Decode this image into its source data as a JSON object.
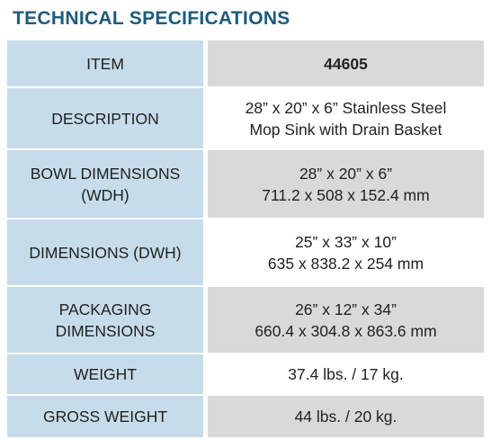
{
  "title": "TECHNICAL SPECIFICATIONS",
  "table": {
    "rows": [
      {
        "label": [
          "ITEM"
        ],
        "value": [
          "44605"
        ]
      },
      {
        "label": [
          "DESCRIPTION"
        ],
        "value": [
          "28” x 20” x 6” Stainless Steel",
          "Mop Sink with Drain Basket"
        ]
      },
      {
        "label": [
          "BOWL DIMENSIONS",
          "(WDH)"
        ],
        "value": [
          "28” x 20” x 6”",
          "711.2 x 508 x 152.4 mm"
        ]
      },
      {
        "label": [
          "DIMENSIONS (DWH)"
        ],
        "value": [
          "25” x 33” x 10”",
          "635 x 838.2 x 254 mm"
        ]
      },
      {
        "label": [
          "PACKAGING",
          "DIMENSIONS"
        ],
        "value": [
          "26” x 12” x 34”",
          "660.4 x 304.8 x 863.6 mm"
        ]
      },
      {
        "label": [
          "WEIGHT"
        ],
        "value": [
          "37.4 lbs. / 17 kg."
        ]
      },
      {
        "label": [
          "GROSS WEIGHT"
        ],
        "value": [
          "44 lbs. / 20 kg."
        ]
      }
    ]
  }
}
